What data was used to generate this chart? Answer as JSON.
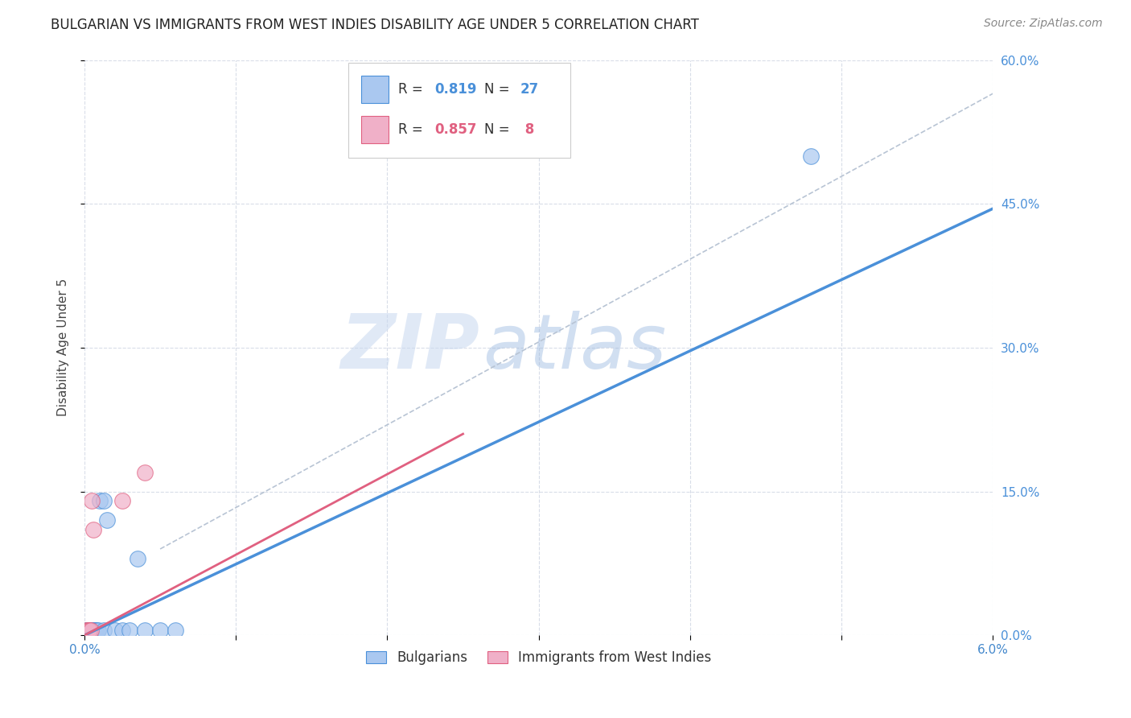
{
  "title": "BULGARIAN VS IMMIGRANTS FROM WEST INDIES DISABILITY AGE UNDER 5 CORRELATION CHART",
  "source": "Source: ZipAtlas.com",
  "ylabel": "Disability Age Under 5",
  "xlim": [
    0.0,
    0.06
  ],
  "ylim": [
    0.0,
    0.6
  ],
  "xticks": [
    0.0,
    0.01,
    0.02,
    0.03,
    0.04,
    0.05,
    0.06
  ],
  "xticklabels_show": {
    "0.0": "0.0%",
    "0.06": "6.0%"
  },
  "yticks_right": [
    0.0,
    0.15,
    0.3,
    0.45,
    0.6
  ],
  "yticklabels_right": [
    "0.0%",
    "15.0%",
    "30.0%",
    "45.0%",
    "60.0%"
  ],
  "legend_labels": [
    "Bulgarians",
    "Immigrants from West Indies"
  ],
  "bulgarians_x": [
    0.0001,
    0.0002,
    0.0002,
    0.0003,
    0.0003,
    0.0004,
    0.0004,
    0.0005,
    0.0005,
    0.0006,
    0.0006,
    0.0007,
    0.0007,
    0.0008,
    0.0009,
    0.001,
    0.0013,
    0.0013,
    0.0015,
    0.002,
    0.0025,
    0.003,
    0.0035,
    0.004,
    0.005,
    0.006,
    0.048
  ],
  "bulgarians_y": [
    0.005,
    0.005,
    0.005,
    0.005,
    0.005,
    0.005,
    0.005,
    0.005,
    0.005,
    0.005,
    0.005,
    0.005,
    0.005,
    0.005,
    0.005,
    0.14,
    0.14,
    0.005,
    0.12,
    0.005,
    0.005,
    0.005,
    0.08,
    0.005,
    0.005,
    0.005,
    0.5
  ],
  "westindies_x": [
    0.0001,
    0.0002,
    0.0003,
    0.0003,
    0.0004,
    0.0005,
    0.0006,
    0.0025,
    0.004
  ],
  "westindies_y": [
    0.005,
    0.005,
    0.005,
    0.005,
    0.005,
    0.14,
    0.11,
    0.14,
    0.17
  ],
  "blue_line_x": [
    0.0,
    0.06
  ],
  "blue_line_y": [
    0.0,
    0.445
  ],
  "pink_line_x": [
    0.0,
    0.025
  ],
  "pink_line_y": [
    0.0,
    0.21
  ],
  "gray_line_x": [
    0.005,
    0.06
  ],
  "gray_line_y": [
    0.09,
    0.565
  ],
  "blue_color": "#4a90d9",
  "pink_color": "#e06080",
  "scatter_blue": "#aac8f0",
  "scatter_pink": "#f0b0c8",
  "grid_color": "#d8dde8",
  "watermark_zip": "ZIP",
  "watermark_atlas": "atlas",
  "title_fontsize": 12,
  "axis_label_fontsize": 11,
  "tick_fontsize": 11,
  "source_fontsize": 10
}
